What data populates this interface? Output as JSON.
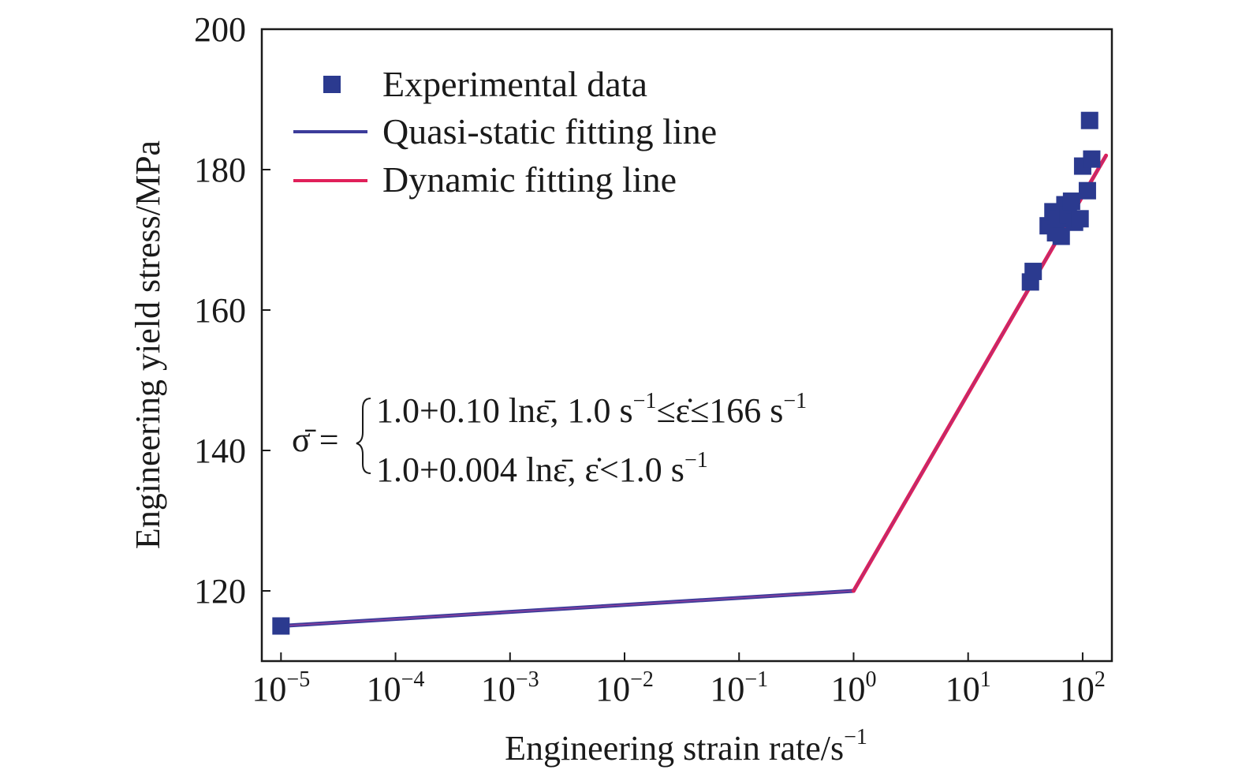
{
  "chart_data": {
    "type": "scatter",
    "title": "",
    "xlabel": "Engineering strain rate/s",
    "xlabel_sup": "−1",
    "ylabel": "Engineering yield stress/MPa",
    "xscale": "log",
    "xlim": [
      6.8e-06,
      180
    ],
    "ylim": [
      110,
      200
    ],
    "x_ticks": [
      {
        "value": 1e-05,
        "base": "10",
        "exp": "−5"
      },
      {
        "value": 0.0001,
        "base": "10",
        "exp": "−4"
      },
      {
        "value": 0.001,
        "base": "10",
        "exp": "−3"
      },
      {
        "value": 0.01,
        "base": "10",
        "exp": "−2"
      },
      {
        "value": 0.1,
        "base": "10",
        "exp": "−1"
      },
      {
        "value": 1,
        "base": "10",
        "exp": "0"
      },
      {
        "value": 10,
        "base": "10",
        "exp": "1"
      },
      {
        "value": 100,
        "base": "10",
        "exp": "2"
      }
    ],
    "y_ticks": [
      {
        "value": 120,
        "label": "120"
      },
      {
        "value": 140,
        "label": "140"
      },
      {
        "value": 160,
        "label": "160"
      },
      {
        "value": 180,
        "label": "180"
      },
      {
        "value": 200,
        "label": "200"
      }
    ],
    "grid": false,
    "legend_position": "top-left",
    "series": [
      {
        "name": "Experimental data",
        "kind": "scatter",
        "marker": "square",
        "color": "#2b3a8f",
        "points": [
          {
            "x": 1e-05,
            "y": 115
          },
          {
            "x": 35,
            "y": 164
          },
          {
            "x": 37,
            "y": 165.5
          },
          {
            "x": 50,
            "y": 172
          },
          {
            "x": 55,
            "y": 174
          },
          {
            "x": 58,
            "y": 171
          },
          {
            "x": 62,
            "y": 173
          },
          {
            "x": 65,
            "y": 170.5
          },
          {
            "x": 70,
            "y": 175
          },
          {
            "x": 75,
            "y": 173.5
          },
          {
            "x": 80,
            "y": 175.5
          },
          {
            "x": 85,
            "y": 172.5
          },
          {
            "x": 95,
            "y": 173
          },
          {
            "x": 100,
            "y": 180.5
          },
          {
            "x": 110,
            "y": 177
          },
          {
            "x": 115,
            "y": 187
          },
          {
            "x": 120,
            "y": 181.5
          }
        ]
      },
      {
        "name": "Quasi-static fitting line",
        "kind": "line",
        "color": "#3c3c9a",
        "highlight": "#d040a0",
        "points": [
          {
            "x": 1e-05,
            "y": 115
          },
          {
            "x": 1,
            "y": 120
          }
        ]
      },
      {
        "name": "Dynamic fitting line",
        "kind": "line",
        "color": "#e0205a",
        "highlight": "#8a3a8a",
        "points": [
          {
            "x": 1,
            "y": 120
          },
          {
            "x": 160,
            "y": 182
          }
        ]
      }
    ],
    "annotation": {
      "lhs": "σ̄ =",
      "line1": {
        "text": "1.0+0.10 lnε̄, 1.0 s",
        "sup1": "−1",
        "mid": "≤ε̇≤166 s",
        "sup2": "−1"
      },
      "line2": {
        "text": "1.0+0.004 lnε̄, ε̇<1.0 s",
        "sup1": "−1"
      }
    }
  }
}
